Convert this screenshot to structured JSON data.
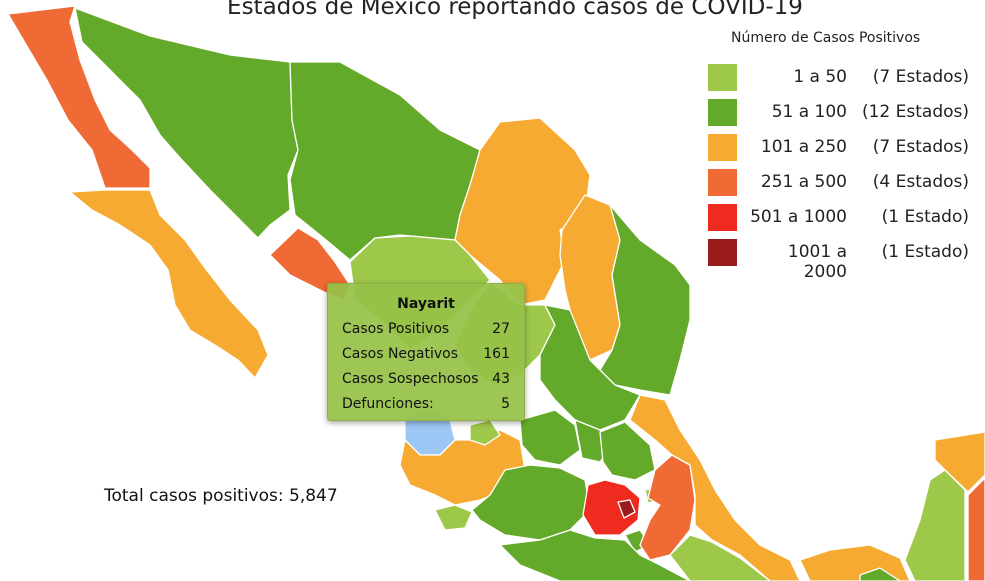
{
  "title": "Estados de México reportando casos de COVID-19",
  "legend": {
    "title": "Número de Casos Positivos",
    "items": [
      {
        "range": "1 a 50",
        "count": "(7 Estados)",
        "color": "#9ec84a"
      },
      {
        "range": "51 a 100",
        "count": "(12 Estados)",
        "color": "#63a92a"
      },
      {
        "range": "101 a 250",
        "count": "(7 Estados)",
        "color": "#f6aa32"
      },
      {
        "range": "251 a 500",
        "count": "(4 Estados)",
        "color": "#ef6a35"
      },
      {
        "range": "501 a 1000",
        "count": "(1 Estado)",
        "color": "#ef2a1e"
      },
      {
        "range": "1001 a 2000",
        "count": "(1 Estado)",
        "color": "#9a1b1b"
      }
    ]
  },
  "tooltip": {
    "state": "Nayarit",
    "rows": [
      {
        "label": "Casos Positivos",
        "value": "27"
      },
      {
        "label": "Casos Negativos",
        "value": "161"
      },
      {
        "label": "Casos Sospechosos",
        "value": "43"
      },
      {
        "label": "Defunciones:",
        "value": "5"
      }
    ]
  },
  "total": "Total casos positivos: 5,847",
  "colors": {
    "tier1": "#9ec84a",
    "tier2": "#63a92a",
    "tier3": "#f6aa32",
    "tier4": "#ef6a35",
    "tier5": "#ef2a1e",
    "tier6": "#9a1b1b",
    "highlight": "#9cc7f4"
  }
}
